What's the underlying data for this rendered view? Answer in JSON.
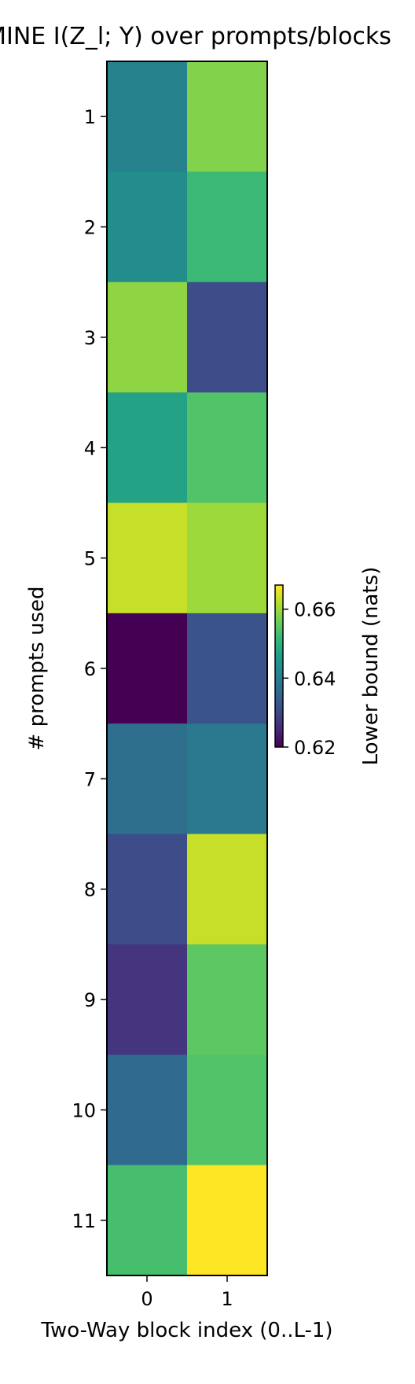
{
  "chart_data": {
    "type": "heatmap",
    "title": "MINE  I(Z_l; Y) over prompts/blocks",
    "xlabel": "Two-Way block index (0..L-1)",
    "ylabel": "# prompts used",
    "x_categories": [
      "0",
      "1"
    ],
    "y_categories": [
      "1",
      "2",
      "3",
      "4",
      "5",
      "6",
      "7",
      "8",
      "9",
      "10",
      "11"
    ],
    "values": [
      [
        0.641,
        0.658
      ],
      [
        0.643,
        0.652
      ],
      [
        0.659,
        0.631
      ],
      [
        0.647,
        0.654
      ],
      [
        0.663,
        0.66
      ],
      [
        0.62,
        0.632
      ],
      [
        0.637,
        0.639
      ],
      [
        0.631,
        0.663
      ],
      [
        0.627,
        0.655
      ],
      [
        0.636,
        0.654
      ],
      [
        0.653,
        0.667
      ]
    ],
    "colormap": "viridis",
    "colorbar": {
      "label": "Lower bound (nats)",
      "vmin": 0.62,
      "vmax": 0.667,
      "ticks": [
        "0.62",
        "0.64",
        "0.66"
      ]
    }
  }
}
